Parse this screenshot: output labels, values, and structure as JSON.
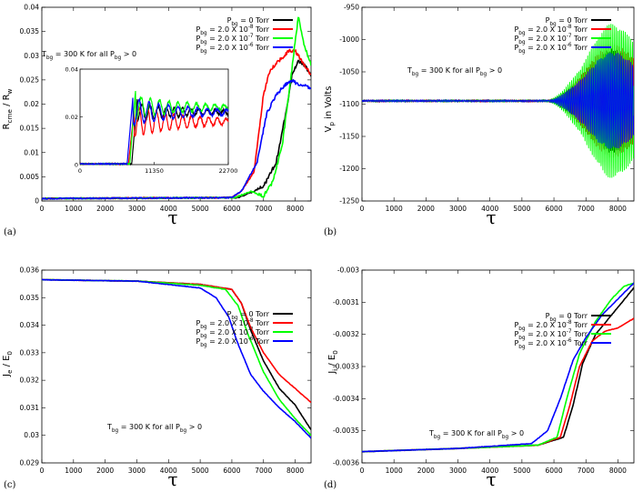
{
  "chart_data": [
    {
      "panel_label": "(a)",
      "type": "line",
      "xlabel": "τ",
      "ylabel": {
        "base": "R",
        "sub": "cme",
        "rest": " / R",
        "sub2": "w"
      },
      "xlim": [
        0,
        8500
      ],
      "ylim": [
        0,
        0.04
      ],
      "xticks": [
        "0",
        "1000",
        "2000",
        "3000",
        "4000",
        "5000",
        "6000",
        "7000",
        "8000"
      ],
      "yticks": [
        "0",
        "0.005",
        "0.01",
        "0.015",
        "0.02",
        "0.025",
        "0.03",
        "0.035",
        "0.04"
      ],
      "annotation": "T_bg = 300 K for all P_bg > 0",
      "series": [
        {
          "name": "P_bg = 0 Torr",
          "color": "#000000",
          "points": [
            [
              0,
              0.0005
            ],
            [
              6200,
              0.0007
            ],
            [
              6700,
              0.002
            ],
            [
              7000,
              0.003
            ],
            [
              7400,
              0.008
            ],
            [
              7700,
              0.018
            ],
            [
              7900,
              0.026
            ],
            [
              8100,
              0.029
            ],
            [
              8300,
              0.028
            ],
            [
              8500,
              0.026
            ]
          ]
        },
        {
          "name": "P_bg = 2.0 X 10^-8 Torr",
          "color": "#ff0000",
          "points": [
            [
              0,
              0.0005
            ],
            [
              6000,
              0.0007
            ],
            [
              6300,
              0.002
            ],
            [
              6700,
              0.006
            ],
            [
              7000,
              0.022
            ],
            [
              7200,
              0.027
            ],
            [
              7500,
              0.029
            ],
            [
              7800,
              0.031
            ],
            [
              8000,
              0.031
            ],
            [
              8200,
              0.029
            ],
            [
              8500,
              0.026
            ]
          ]
        },
        {
          "name": "P_bg = 2.0 X 10^-7 Torr",
          "color": "#00ff00",
          "points": [
            [
              0,
              0.0005
            ],
            [
              6100,
              0.0007
            ],
            [
              6600,
              0.002
            ],
            [
              7000,
              0.001
            ],
            [
              7300,
              0.004
            ],
            [
              7600,
              0.012
            ],
            [
              7800,
              0.022
            ],
            [
              8000,
              0.033
            ],
            [
              8100,
              0.038
            ],
            [
              8250,
              0.033
            ],
            [
              8500,
              0.028
            ]
          ]
        },
        {
          "name": "P_bg = 2.0 X 10^-6 Torr",
          "color": "#0000ff",
          "points": [
            [
              0,
              0.0005
            ],
            [
              6000,
              0.0007
            ],
            [
              6300,
              0.002
            ],
            [
              6800,
              0.008
            ],
            [
              7100,
              0.018
            ],
            [
              7400,
              0.022
            ],
            [
              7700,
              0.024
            ],
            [
              7900,
              0.025
            ],
            [
              8100,
              0.024
            ],
            [
              8300,
              0.024
            ],
            [
              8500,
              0.023
            ]
          ]
        }
      ],
      "inset": {
        "xlim": [
          0,
          22700
        ],
        "ylim": [
          0,
          0.04
        ],
        "xticks": [
          "0",
          "11350",
          "22700"
        ],
        "yticks": [
          "0",
          "0.02",
          "0.04"
        ]
      }
    },
    {
      "panel_label": "(b)",
      "type": "line",
      "xlabel": "τ",
      "ylabel": {
        "base": "V",
        "sub": "p",
        "rest": " in Volts"
      },
      "xlim": [
        0,
        8500
      ],
      "ylim": [
        -1250,
        -950
      ],
      "xticks": [
        "0",
        "1000",
        "2000",
        "3000",
        "4000",
        "5000",
        "6000",
        "7000",
        "8000"
      ],
      "yticks": [
        "-950",
        "-1000",
        "-1050",
        "-1100",
        "-1150",
        "-1200",
        "-1250"
      ],
      "annotation": "T_bg = 300 K for all P_bg > 0",
      "baseline": -1095,
      "series": [
        {
          "name": "P_bg = 0 Torr",
          "color": "#000000",
          "amp_max": 80
        },
        {
          "name": "P_bg = 2.0 X 10^-8 Torr",
          "color": "#ff0000",
          "amp_max": 88
        },
        {
          "name": "P_bg = 2.0 X 10^-7 Torr",
          "color": "#00ff00",
          "amp_max": 120
        },
        {
          "name": "P_bg = 2.0 X 10^-6 Torr",
          "color": "#0000ff",
          "amp_max": 75
        }
      ]
    },
    {
      "panel_label": "(c)",
      "type": "line",
      "xlabel": "τ",
      "ylabel": {
        "base": "J",
        "sub": "e",
        "rest": " / E",
        "sub2": "0"
      },
      "xlim": [
        0,
        8500
      ],
      "ylim": [
        0.029,
        0.036
      ],
      "xticks": [
        "0",
        "1000",
        "2000",
        "3000",
        "4000",
        "5000",
        "6000",
        "7000",
        "8000"
      ],
      "yticks": [
        "0.029",
        "0.03",
        "0.031",
        "0.032",
        "0.033",
        "0.034",
        "0.035",
        "0.036"
      ],
      "annotation": "T_bg = 300 K for all P_bg > 0",
      "series": [
        {
          "name": "P_bg = 0 Torr",
          "color": "#000000",
          "points": [
            [
              0,
              0.03565
            ],
            [
              3000,
              0.0356
            ],
            [
              5000,
              0.03548
            ],
            [
              6000,
              0.0353
            ],
            [
              6300,
              0.0348
            ],
            [
              6600,
              0.0338
            ],
            [
              7000,
              0.0327
            ],
            [
              7500,
              0.0317
            ],
            [
              8000,
              0.0311
            ],
            [
              8500,
              0.0302
            ]
          ]
        },
        {
          "name": "P_bg = 2.0 X 10^-8 Torr",
          "color": "#ff0000",
          "points": [
            [
              0,
              0.03565
            ],
            [
              3000,
              0.0356
            ],
            [
              5000,
              0.03548
            ],
            [
              6000,
              0.0353
            ],
            [
              6300,
              0.0348
            ],
            [
              6600,
              0.0339
            ],
            [
              7000,
              0.033
            ],
            [
              7500,
              0.0322
            ],
            [
              8000,
              0.0317
            ],
            [
              8500,
              0.0312
            ]
          ]
        },
        {
          "name": "P_bg = 2.0 X 10^-7 Torr",
          "color": "#00ff00",
          "points": [
            [
              0,
              0.03565
            ],
            [
              3000,
              0.0356
            ],
            [
              5000,
              0.03545
            ],
            [
              5800,
              0.0353
            ],
            [
              6200,
              0.0347
            ],
            [
              6500,
              0.0337
            ],
            [
              7000,
              0.0323
            ],
            [
              7500,
              0.0313
            ],
            [
              8000,
              0.0306
            ],
            [
              8500,
              0.03
            ]
          ]
        },
        {
          "name": "P_bg = 2.0 X 10^-6 Torr",
          "color": "#0000ff",
          "points": [
            [
              0,
              0.03565
            ],
            [
              3000,
              0.0356
            ],
            [
              5000,
              0.03535
            ],
            [
              5500,
              0.035
            ],
            [
              5900,
              0.0343
            ],
            [
              6200,
              0.0333
            ],
            [
              6600,
              0.0322
            ],
            [
              7000,
              0.0316
            ],
            [
              7500,
              0.031
            ],
            [
              8000,
              0.0305
            ],
            [
              8500,
              0.0299
            ]
          ]
        }
      ]
    },
    {
      "panel_label": "(d)",
      "type": "line",
      "xlabel": "τ",
      "ylabel": {
        "base": "J",
        "sub": "i",
        "rest": " / E",
        "sub2": "0"
      },
      "xlim": [
        0,
        8500
      ],
      "ylim": [
        -0.0036,
        -0.003
      ],
      "xticks": [
        "0",
        "1000",
        "2000",
        "3000",
        "4000",
        "5000",
        "6000",
        "7000",
        "8000"
      ],
      "yticks": [
        "-0.003",
        "-0.0031",
        "-0.0032",
        "-0.0033",
        "-0.0034",
        "-0.0035",
        "-0.0036"
      ],
      "annotation": "T_bg = 300 K for all P_bg > 0",
      "series": [
        {
          "name": "P_bg = 0 Torr",
          "color": "#000000",
          "points": [
            [
              0,
              -0.003565
            ],
            [
              3000,
              -0.003555
            ],
            [
              5500,
              -0.003545
            ],
            [
              6300,
              -0.00352
            ],
            [
              6600,
              -0.00342
            ],
            [
              6900,
              -0.00329
            ],
            [
              7300,
              -0.0032
            ],
            [
              7800,
              -0.00314
            ],
            [
              8500,
              -0.003055
            ]
          ]
        },
        {
          "name": "P_bg = 2.0 X 10^-8 Torr",
          "color": "#ff0000",
          "points": [
            [
              0,
              -0.003565
            ],
            [
              3000,
              -0.003555
            ],
            [
              5500,
              -0.003545
            ],
            [
              6200,
              -0.00352
            ],
            [
              6500,
              -0.00342
            ],
            [
              6800,
              -0.0033
            ],
            [
              7200,
              -0.00322
            ],
            [
              7600,
              -0.00319
            ],
            [
              8000,
              -0.00318
            ],
            [
              8500,
              -0.00315
            ]
          ]
        },
        {
          "name": "P_bg = 2.0 X 10^-7 Torr",
          "color": "#00ff00",
          "points": [
            [
              0,
              -0.003565
            ],
            [
              3000,
              -0.003555
            ],
            [
              5500,
              -0.003545
            ],
            [
              6100,
              -0.00352
            ],
            [
              6400,
              -0.0034
            ],
            [
              6800,
              -0.00326
            ],
            [
              7300,
              -0.00316
            ],
            [
              7800,
              -0.00309
            ],
            [
              8200,
              -0.00305
            ],
            [
              8500,
              -0.00304
            ]
          ]
        },
        {
          "name": "P_bg = 2.0 X 10^-6 Torr",
          "color": "#0000ff",
          "points": [
            [
              0,
              -0.003565
            ],
            [
              3000,
              -0.003555
            ],
            [
              5300,
              -0.00354
            ],
            [
              5800,
              -0.0035
            ],
            [
              6200,
              -0.0034
            ],
            [
              6600,
              -0.00328
            ],
            [
              7000,
              -0.00321
            ],
            [
              7500,
              -0.00314
            ],
            [
              8000,
              -0.00309
            ],
            [
              8500,
              -0.00304
            ]
          ]
        }
      ]
    }
  ]
}
